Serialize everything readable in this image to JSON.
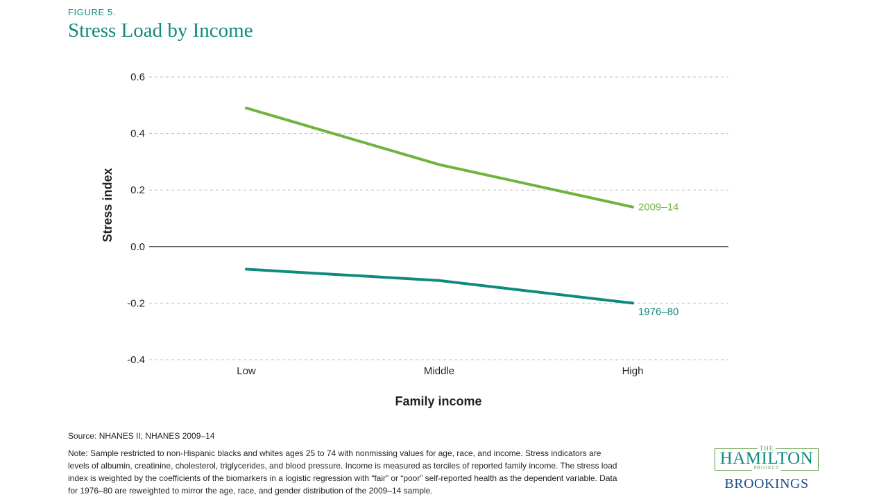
{
  "figure_label": "FIGURE 5.",
  "chart_data": {
    "type": "line",
    "title": "Stress Load by Income",
    "xlabel": "Family income",
    "ylabel": "Stress index",
    "categories": [
      "Low",
      "Middle",
      "High"
    ],
    "ylim": [
      -0.4,
      0.6
    ],
    "yticks": [
      0.6,
      0.4,
      0.2,
      0.0,
      -0.2,
      -0.4
    ],
    "ytick_labels": [
      "0.6",
      "0.4",
      "0.2",
      "0.0",
      "-0.2",
      "-0.4"
    ],
    "grid": "horizontal dashed",
    "series": [
      {
        "name": "2009–14",
        "values": [
          0.49,
          0.29,
          0.14
        ],
        "color": "#6fb43f"
      },
      {
        "name": "1976–80",
        "values": [
          -0.08,
          -0.12,
          -0.2
        ],
        "color": "#0f8a7e"
      }
    ]
  },
  "source": "Source: NHANES II; NHANES 2009–14",
  "note": "Note: Sample restricted to non-Hispanic blacks and whites ages 25 to 74 with nonmissing values for age, race, and income. Stress indicators are levels of albumin, creatinine, cholesterol, triglycerides, and blood pressure. Income is measured as terciles of reported family income. The stress load index is weighted by the coefficients of the biomarkers in a logistic regression with “fair” or “poor” self-reported health as the dependent variable. Data for 1976–80 are reweighted to mirror the age, race, and gender distribution of the 2009–14 sample.",
  "logo": {
    "the": "THE",
    "hamilton": "HAMILTON",
    "project": "PROJECT",
    "brookings": "BROOKINGS"
  },
  "colors": {
    "accent": "#0f8a7e",
    "series_2009": "#6fb43f",
    "series_1976": "#0f8a7e"
  }
}
